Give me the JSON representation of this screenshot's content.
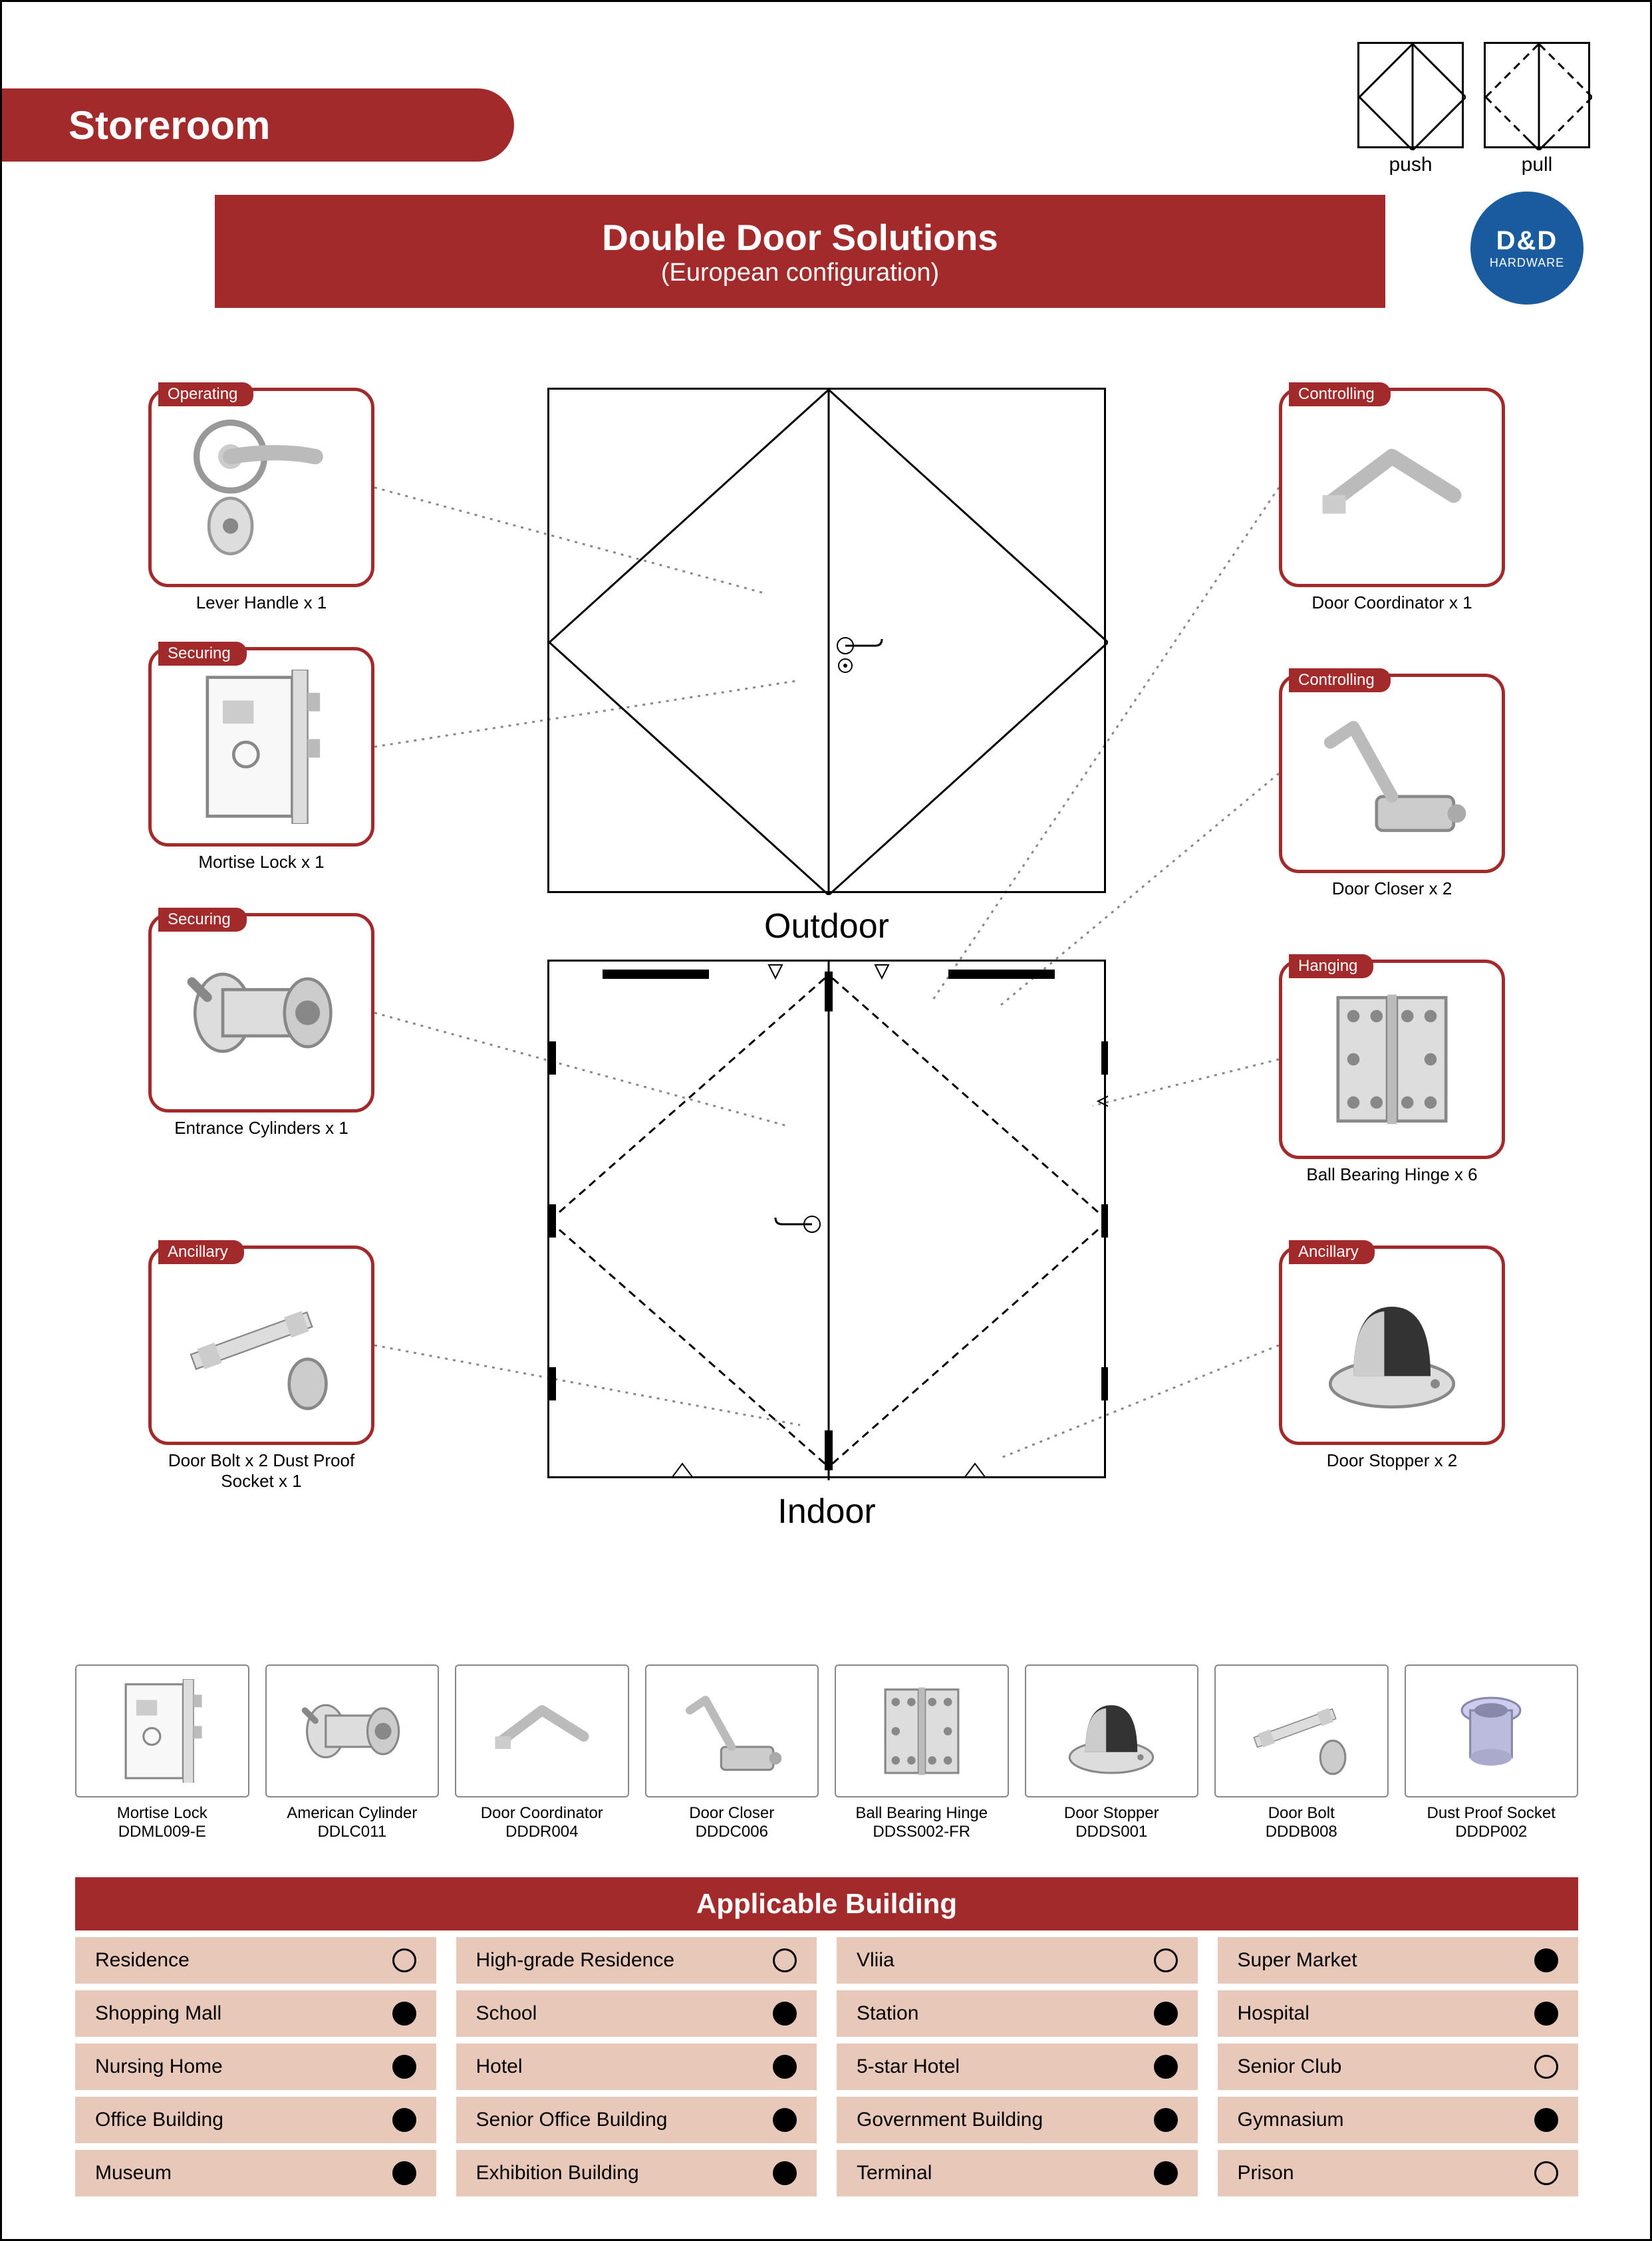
{
  "header": {
    "tab": "Storeroom"
  },
  "pushpull": {
    "left": "push",
    "right": "pull"
  },
  "banner": {
    "title": "Double Door Solutions",
    "subtitle": "(European configuration)"
  },
  "logo": {
    "main": "D&D",
    "sub": "HARDWARE"
  },
  "brand_color": "#a22a2a",
  "accent_beige": "#e8c8b8",
  "logo_color": "#1a5a9e",
  "left_products": [
    {
      "tag": "Operating",
      "label": "Lever Handle x 1",
      "icon": "lever-handle"
    },
    {
      "tag": "Securing",
      "label": "Mortise Lock x 1",
      "icon": "mortise-lock"
    },
    {
      "tag": "Securing",
      "label": "Entrance Cylinders x 1",
      "icon": "cylinder"
    },
    {
      "tag": "Ancillary",
      "label": "Door Bolt x 2   Dust Proof Socket x 1",
      "icon": "door-bolt"
    }
  ],
  "right_products": [
    {
      "tag": "Controlling",
      "label": "Door Coordinator x 1",
      "icon": "coordinator"
    },
    {
      "tag": "Controlling",
      "label": "Door Closer x 2",
      "icon": "closer"
    },
    {
      "tag": "Hanging",
      "label": "Ball Bearing Hinge x 6",
      "icon": "hinge"
    },
    {
      "tag": "Ancillary",
      "label": "Door Stopper x 2",
      "icon": "stopper"
    }
  ],
  "diagram": {
    "outdoor": "Outdoor",
    "indoor": "Indoor"
  },
  "row_products": [
    {
      "name": "Mortise Lock",
      "code": "DDML009-E",
      "icon": "mortise-lock"
    },
    {
      "name": "American Cylinder",
      "code": "DDLC011",
      "icon": "cylinder"
    },
    {
      "name": "Door Coordinator",
      "code": "DDDR004",
      "icon": "coordinator"
    },
    {
      "name": "Door Closer",
      "code": "DDDC006",
      "icon": "closer"
    },
    {
      "name": "Ball Bearing Hinge",
      "code": "DDSS002-FR",
      "icon": "hinge"
    },
    {
      "name": "Door Stopper",
      "code": "DDDS001",
      "icon": "stopper"
    },
    {
      "name": "Door Bolt",
      "code": "DDDB008",
      "icon": "door-bolt"
    },
    {
      "name": "Dust Proof Socket",
      "code": "DDDP002",
      "icon": "socket"
    }
  ],
  "applicable": {
    "title": "Applicable Building",
    "rows": [
      [
        {
          "n": "Residence",
          "f": false
        },
        {
          "n": "High-grade Residence",
          "f": false
        },
        {
          "n": "Vliia",
          "f": false
        },
        {
          "n": "Super Market",
          "f": true
        }
      ],
      [
        {
          "n": "Shopping Mall",
          "f": true
        },
        {
          "n": "School",
          "f": true
        },
        {
          "n": "Station",
          "f": true
        },
        {
          "n": "Hospital",
          "f": true
        }
      ],
      [
        {
          "n": "Nursing Home",
          "f": true
        },
        {
          "n": "Hotel",
          "f": true
        },
        {
          "n": "5-star Hotel",
          "f": true
        },
        {
          "n": "Senior Club",
          "f": false
        }
      ],
      [
        {
          "n": "Office Building",
          "f": true
        },
        {
          "n": "Senior Office Building",
          "f": true
        },
        {
          "n": "Government Building",
          "f": true
        },
        {
          "n": "Gymnasium",
          "f": true
        }
      ],
      [
        {
          "n": "Museum",
          "f": true
        },
        {
          "n": "Exhibition Building",
          "f": true
        },
        {
          "n": "Terminal",
          "f": true
        },
        {
          "n": "Prison",
          "f": false
        }
      ]
    ]
  },
  "left_positions": [
    40,
    430,
    830,
    1330
  ],
  "right_positions": [
    40,
    470,
    900,
    1330
  ]
}
